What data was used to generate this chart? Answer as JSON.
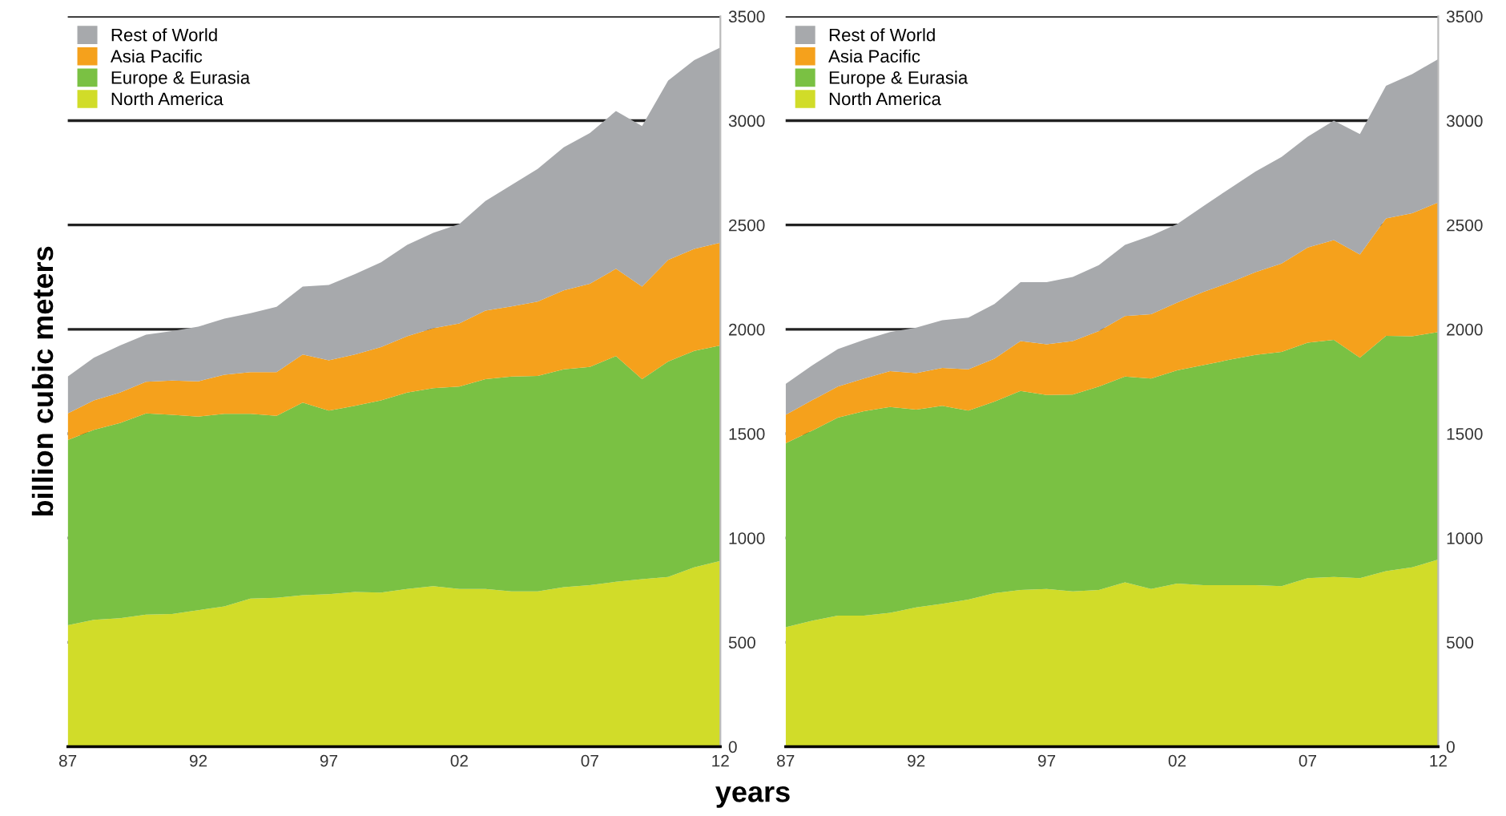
{
  "chart_data": [
    {
      "type": "area",
      "stacked": true,
      "xlabel": "years",
      "ylabel": "billion cubic meters",
      "x": [
        1987,
        1988,
        1989,
        1990,
        1991,
        1992,
        1993,
        1994,
        1995,
        1996,
        1997,
        1998,
        1999,
        2000,
        2001,
        2002,
        2003,
        2004,
        2005,
        2006,
        2007,
        2008,
        2009,
        2010,
        2011,
        2012
      ],
      "series": [
        {
          "name": "North America",
          "color": "#d1dc29",
          "values": [
            582,
            608,
            615,
            633,
            636,
            654,
            672,
            710,
            713,
            726,
            731,
            741,
            738,
            756,
            769,
            756,
            756,
            744,
            744,
            764,
            774,
            790,
            803,
            813,
            859,
            890
          ]
        },
        {
          "name": "Europe & Eurasia",
          "color": "#7ac143",
          "values": [
            887,
            910,
            936,
            964,
            954,
            928,
            923,
            885,
            872,
            923,
            879,
            892,
            921,
            941,
            949,
            970,
            1005,
            1030,
            1033,
            1044,
            1046,
            1082,
            958,
            1033,
            1038,
            1033
          ]
        },
        {
          "name": "Asia Pacific",
          "color": "#f5a11c",
          "values": [
            128,
            141,
            146,
            152,
            164,
            169,
            187,
            200,
            210,
            230,
            241,
            246,
            256,
            270,
            287,
            302,
            329,
            336,
            356,
            379,
            398,
            418,
            444,
            487,
            488,
            492
          ]
        },
        {
          "name": "Rest of World",
          "color": "#a7a9ac",
          "values": [
            177,
            205,
            226,
            225,
            238,
            262,
            269,
            282,
            313,
            326,
            362,
            385,
            406,
            438,
            457,
            477,
            525,
            582,
            636,
            685,
            723,
            756,
            769,
            859,
            905,
            936
          ]
        }
      ],
      "xlim": [
        1987,
        2012
      ],
      "xticks": [
        {
          "value": 1987,
          "label": "87"
        },
        {
          "value": 1992,
          "label": "92"
        },
        {
          "value": 1997,
          "label": "97"
        },
        {
          "value": 2002,
          "label": "02"
        },
        {
          "value": 2007,
          "label": "07"
        },
        {
          "value": 2012,
          "label": "12"
        }
      ],
      "ylim": [
        0,
        3500
      ],
      "yticks": [
        0,
        500,
        1000,
        1500,
        2000,
        2500,
        3000,
        3500
      ],
      "grid": "y",
      "legend": "top left"
    },
    {
      "type": "area",
      "stacked": true,
      "x": [
        1987,
        1988,
        1989,
        1990,
        1991,
        1992,
        1993,
        1994,
        1995,
        1996,
        1997,
        1998,
        1999,
        2000,
        2001,
        2002,
        2003,
        2004,
        2005,
        2006,
        2007,
        2008,
        2009,
        2010,
        2011,
        2012
      ],
      "series": [
        {
          "name": "North America",
          "color": "#d1dc29",
          "values": [
            572,
            603,
            628,
            628,
            641,
            667,
            685,
            705,
            736,
            751,
            756,
            744,
            751,
            787,
            756,
            782,
            774,
            774,
            774,
            769,
            808,
            813,
            808,
            841,
            859,
            897
          ]
        },
        {
          "name": "Europe & Eurasia",
          "color": "#7ac143",
          "values": [
            882,
            910,
            949,
            980,
            987,
            948,
            948,
            905,
            918,
            954,
            929,
            943,
            975,
            987,
            1008,
            1021,
            1054,
            1080,
            1103,
            1123,
            1128,
            1136,
            1056,
            1128,
            1108,
            1090
          ]
        },
        {
          "name": "Asia Pacific",
          "color": "#f5a11c",
          "values": [
            136,
            146,
            149,
            156,
            172,
            175,
            182,
            198,
            205,
            239,
            243,
            257,
            266,
            290,
            308,
            325,
            351,
            369,
            397,
            423,
            456,
            479,
            495,
            562,
            589,
            621
          ]
        },
        {
          "name": "Rest of World",
          "color": "#a7a9ac",
          "values": [
            148,
            167,
            179,
            185,
            187,
            218,
            229,
            248,
            262,
            282,
            298,
            307,
            316,
            341,
            377,
            377,
            411,
            451,
            482,
            511,
            531,
            572,
            577,
            636,
            667,
            687
          ]
        }
      ],
      "xlim": [
        1987,
        2012
      ],
      "xticks": [
        {
          "value": 1987,
          "label": "87"
        },
        {
          "value": 1992,
          "label": "92"
        },
        {
          "value": 1997,
          "label": "97"
        },
        {
          "value": 2002,
          "label": "02"
        },
        {
          "value": 2007,
          "label": "07"
        },
        {
          "value": 2012,
          "label": "12"
        }
      ],
      "ylim": [
        0,
        3500
      ],
      "yticks": [
        0,
        500,
        1000,
        1500,
        2000,
        2500,
        3000,
        3500
      ],
      "grid": "y",
      "legend": "top left"
    }
  ]
}
